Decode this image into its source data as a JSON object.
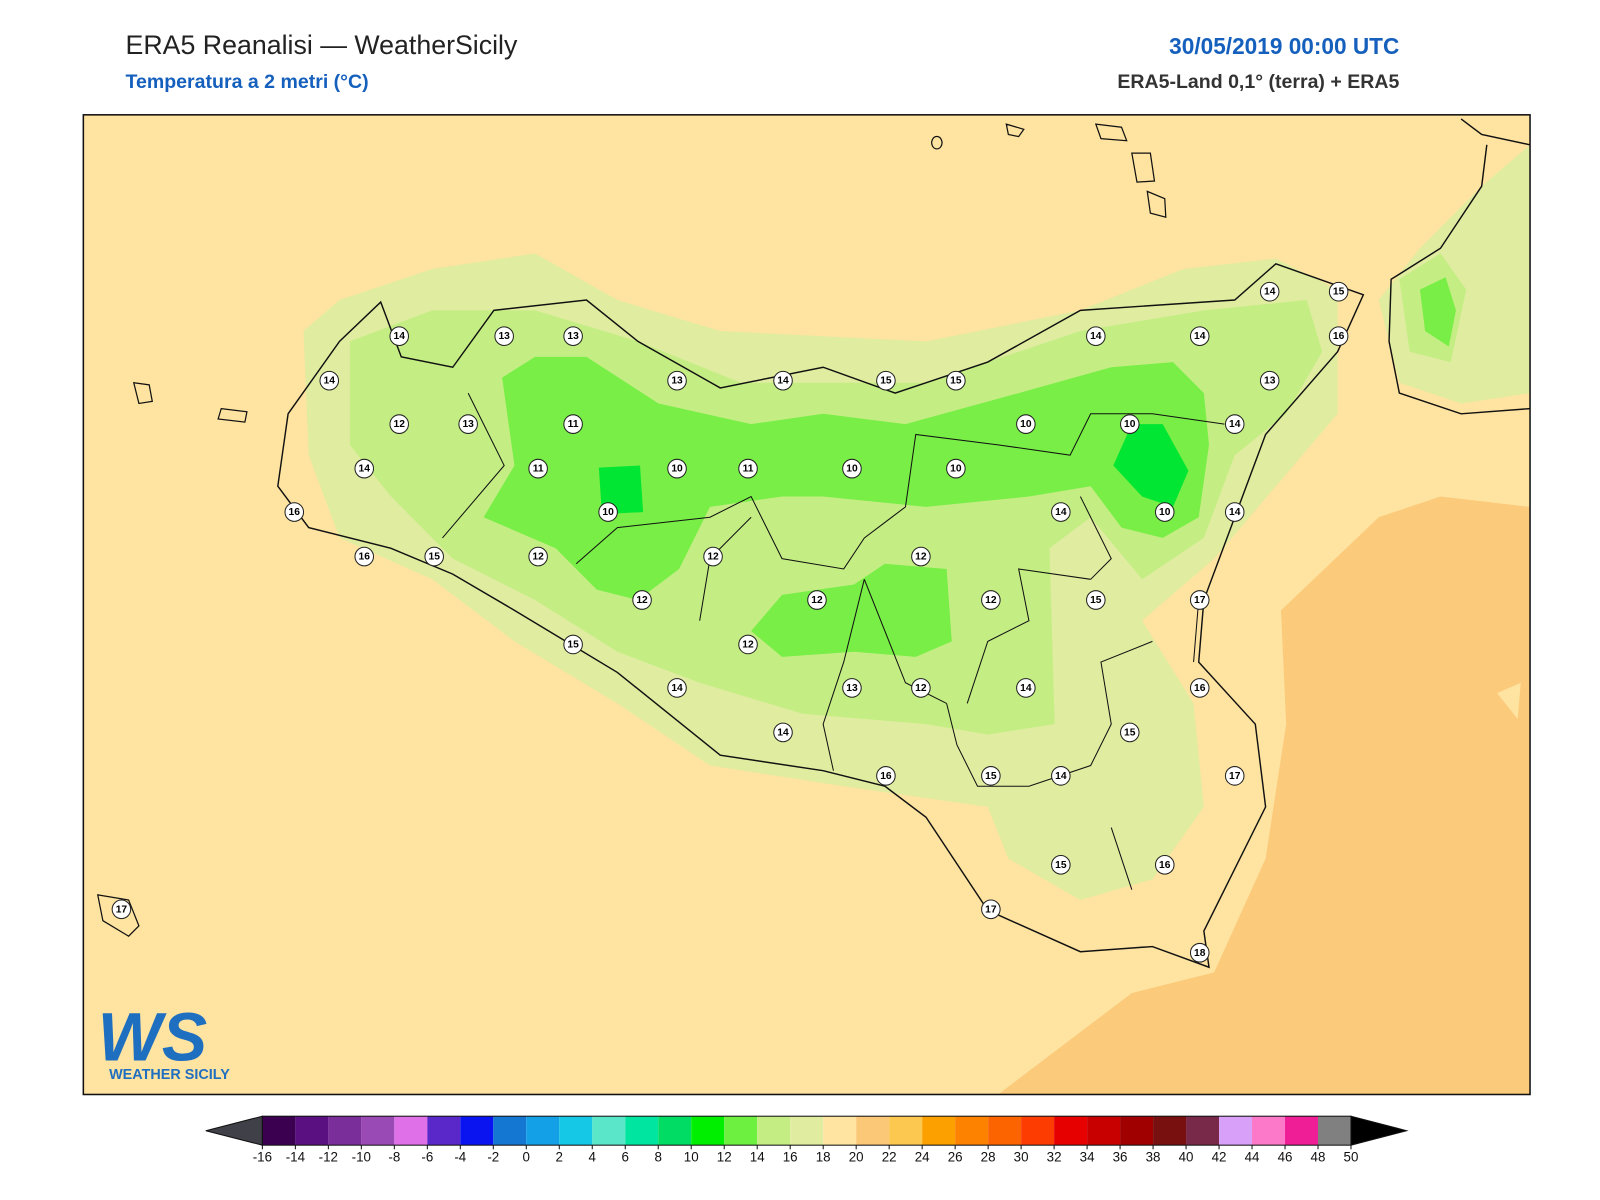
{
  "header": {
    "title": "ERA5 Reanalisi — WeatherSicily",
    "subtitle": "Temperatura a 2 metri (°C)",
    "date": "30/05/2019 00:00 UTC",
    "source": "ERA5-Land 0,1° (terra) + ERA5"
  },
  "stations": [
    14,
    13,
    13,
    14,
    12,
    13,
    11,
    14,
    11,
    10,
    11,
    10,
    16,
    10,
    16,
    15,
    12,
    12,
    12,
    15,
    14,
    14,
    13,
    14,
    15,
    15,
    14,
    14,
    14,
    15,
    16,
    13,
    10,
    10,
    14,
    10,
    14,
    10,
    14,
    12,
    12,
    12,
    15,
    17,
    12,
    13,
    12,
    14,
    16,
    15,
    17,
    16,
    15,
    14,
    15,
    16,
    17,
    18,
    17
  ],
  "colorbar": {
    "ticks": [
      -16,
      -14,
      -12,
      -10,
      -8,
      -6,
      -4,
      -2,
      0,
      2,
      4,
      6,
      8,
      10,
      12,
      14,
      16,
      18,
      20,
      22,
      24,
      26,
      28,
      30,
      32,
      34,
      36,
      38,
      40,
      42,
      44,
      46,
      48,
      50
    ],
    "colors": [
      "#3c0050",
      "#5a1080",
      "#7a2e9a",
      "#9a4ab4",
      "#e070e8",
      "#5a28c8",
      "#0a14f0",
      "#1478d2",
      "#14a0e6",
      "#14c8e6",
      "#5ae6c8",
      "#00e6a0",
      "#00dc64",
      "#00ee00",
      "#6ef040",
      "#c4ee84",
      "#e0eca0",
      "#fee3a1",
      "#fbc878",
      "#fcc850",
      "#fca000",
      "#fc8200",
      "#fc6400",
      "#fc3c00",
      "#e60000",
      "#c80000",
      "#a00000",
      "#781010",
      "#782848",
      "#d8a0f8",
      "#fc78c8",
      "#f01e96",
      "#808080",
      "#404040"
    ],
    "under": "#404048",
    "over": "#000000"
  },
  "logo": {
    "mark": "WS",
    "name": "WEATHER SICILY"
  }
}
